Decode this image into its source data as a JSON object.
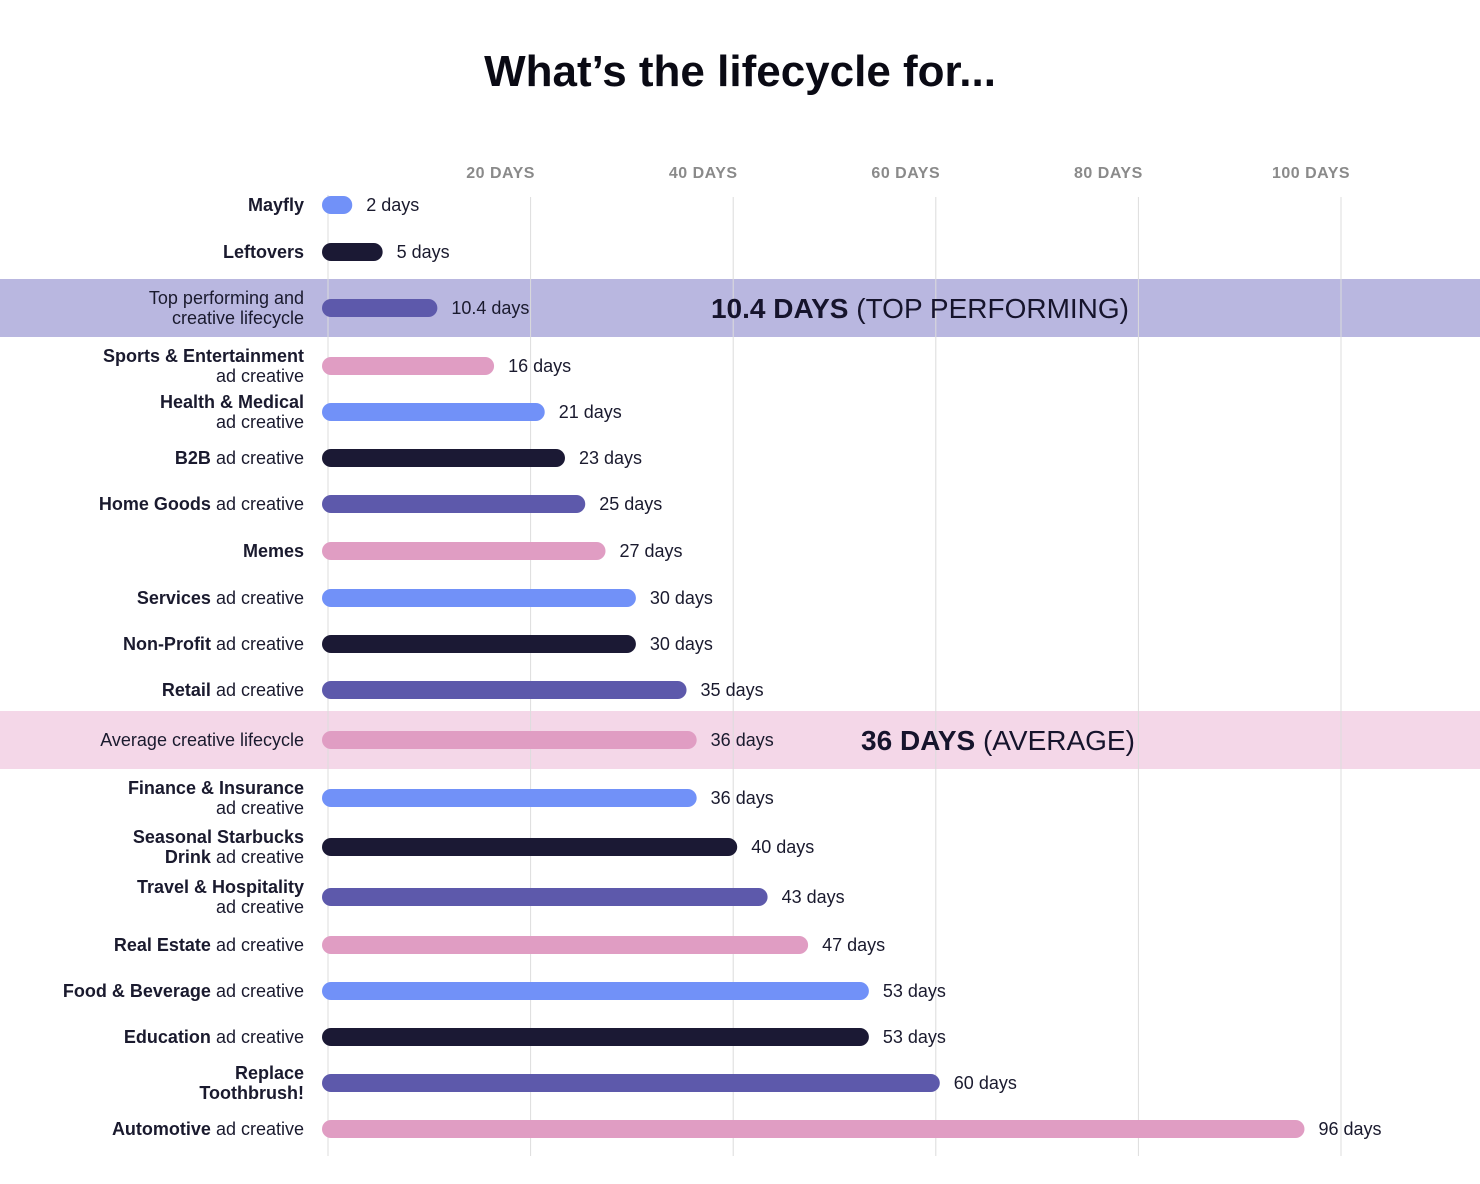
{
  "chart_data": {
    "type": "bar",
    "orientation": "horizontal",
    "title": "What’s the lifecycle for...",
    "xlabel": "",
    "ylabel": "",
    "xlim": [
      0,
      100
    ],
    "xticks": [
      {
        "value": 20,
        "label": "20 DAYS"
      },
      {
        "value": 40,
        "label": "40 DAYS"
      },
      {
        "value": 60,
        "label": "60 DAYS"
      },
      {
        "value": 80,
        "label": "80 DAYS"
      },
      {
        "value": 100,
        "label": "100 DAYS"
      }
    ],
    "grid": true,
    "legend": "none",
    "colors": {
      "blue": "#7191f8",
      "navy": "#1b1934",
      "indigo": "#5d59ab",
      "pink": "#e09dc3",
      "highlight_purple": "#b9b7e0",
      "highlight_pink": "#f4d7e8",
      "gridline": "#dcdcdc"
    },
    "rows": [
      {
        "label": [
          "Mayfly"
        ],
        "bold": [
          true
        ],
        "value": 2,
        "value_label": "2 days",
        "color": "blue"
      },
      {
        "label": [
          "Leftovers"
        ],
        "bold": [
          true
        ],
        "value": 5,
        "value_label": "5 days",
        "color": "navy"
      },
      {
        "label": [
          "Top performing and",
          "creative lifecycle"
        ],
        "bold": [
          false,
          false
        ],
        "value": 10.4,
        "value_label": "10.4 days",
        "color": "indigo",
        "highlight": "highlight_purple",
        "callout": {
          "strong": "10.4 DAYS",
          "rest": " (TOP PERFORMING)"
        }
      },
      {
        "label": [
          "Sports & Entertainment",
          "ad creative"
        ],
        "bold": [
          true,
          false
        ],
        "value": 16,
        "value_label": "16 days",
        "color": "pink"
      },
      {
        "label": [
          "Health & Medical",
          "ad creative"
        ],
        "bold": [
          true,
          false
        ],
        "value": 21,
        "value_label": "21 days",
        "color": "blue"
      },
      {
        "label": [
          "B2B ad creative"
        ],
        "bold": [
          true
        ],
        "boldPrefix": "B2B",
        "value": 23,
        "value_label": "23 days",
        "color": "navy"
      },
      {
        "label": [
          "Home Goods ad creative"
        ],
        "bold": [
          true
        ],
        "boldPrefix": "Home Goods",
        "value": 25,
        "value_label": "25 days",
        "color": "indigo"
      },
      {
        "label": [
          "Memes"
        ],
        "bold": [
          true
        ],
        "value": 27,
        "value_label": "27 days",
        "color": "pink"
      },
      {
        "label": [
          "Services ad creative"
        ],
        "bold": [
          true
        ],
        "boldPrefix": "Services",
        "value": 30,
        "value_label": "30 days",
        "color": "blue"
      },
      {
        "label": [
          "Non-Profit ad creative"
        ],
        "bold": [
          true
        ],
        "boldPrefix": "Non-Profit",
        "value": 30,
        "value_label": "30 days",
        "color": "navy"
      },
      {
        "label": [
          "Retail ad creative"
        ],
        "bold": [
          true
        ],
        "boldPrefix": "Retail",
        "value": 35,
        "value_label": "35 days",
        "color": "indigo"
      },
      {
        "label": [
          "Average creative lifecycle"
        ],
        "bold": [
          false
        ],
        "value": 36,
        "value_label": "36 days",
        "color": "pink",
        "highlight": "highlight_pink",
        "callout": {
          "strong": "36 DAYS",
          "rest": " (AVERAGE)"
        }
      },
      {
        "label": [
          "Finance & Insurance",
          "ad creative"
        ],
        "bold": [
          true,
          false
        ],
        "value": 36,
        "value_label": "36 days",
        "color": "blue"
      },
      {
        "label": [
          "Seasonal Starbucks",
          "Drink ad creative"
        ],
        "bold": [
          true,
          false
        ],
        "boldPrefix2": "Drink",
        "value": 40,
        "value_label": "40 days",
        "color": "navy"
      },
      {
        "label": [
          "Travel & Hospitality",
          "ad creative"
        ],
        "bold": [
          true,
          false
        ],
        "value": 43,
        "value_label": "43 days",
        "color": "indigo"
      },
      {
        "label": [
          "Real Estate ad creative"
        ],
        "bold": [
          true
        ],
        "boldPrefix": "Real Estate",
        "value": 47,
        "value_label": "47 days",
        "color": "pink"
      },
      {
        "label": [
          "Food & Beverage ad creative"
        ],
        "bold": [
          true
        ],
        "boldPrefix": "Food & Beverage",
        "value": 53,
        "value_label": "53 days",
        "color": "blue"
      },
      {
        "label": [
          "Education ad creative"
        ],
        "bold": [
          true
        ],
        "boldPrefix": "Education",
        "value": 53,
        "value_label": "53 days",
        "color": "navy"
      },
      {
        "label": [
          "Replace",
          "Toothbrush!"
        ],
        "bold": [
          true,
          true
        ],
        "value": 60,
        "value_label": "60 days",
        "color": "indigo"
      },
      {
        "label": [
          "Automotive ad creative"
        ],
        "bold": [
          true
        ],
        "boldPrefix": "Automotive",
        "value": 96,
        "value_label": "96 days",
        "color": "pink"
      }
    ]
  }
}
